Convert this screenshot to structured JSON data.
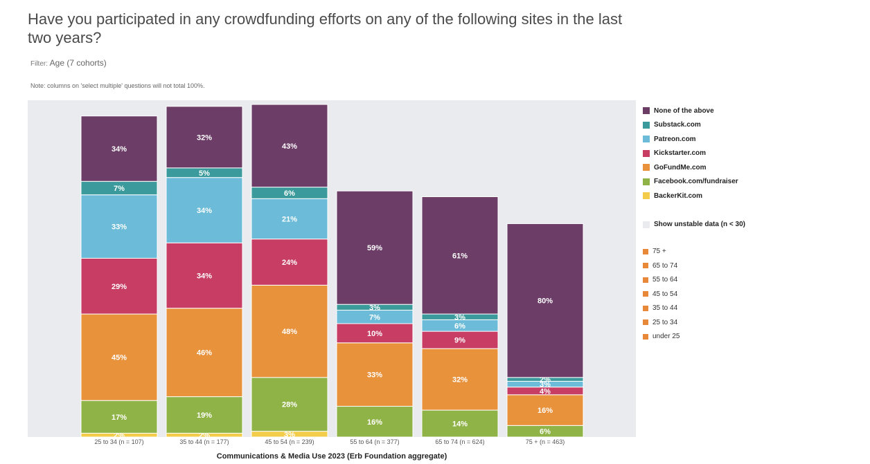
{
  "header": {
    "title": "Have you participated in any crowdfunding efforts on any of the following sites in the last two years?",
    "filter_label": "Filter:",
    "filter_value": "Age (7 cohorts)",
    "note": "Note: columns on 'select multiple' questions will not total 100%."
  },
  "colors": {
    "plot_bg": "#e9ebee",
    "None of the above": "#6b3d67",
    "Substack.com": "#3a9a9c",
    "Patreon.com": "#6cbbd8",
    "Kickstarter.com": "#c73d64",
    "GoFundMe.com": "#e8923c",
    "Facebook.com/fundraiser": "#8fb347",
    "BackerKit.com": "#f2cc4a"
  },
  "chart_data": {
    "type": "bar",
    "stacked": true,
    "xlabel": "Communications & Media Use 2023 (Erb Foundation aggregate)",
    "categories": [
      "25 to 34 (n = 107)",
      "35 to 44 (n = 177)",
      "45 to 54 (n = 239)",
      "55 to 64 (n = 377)",
      "65 to 74 (n = 624)",
      "75 + (n = 463)"
    ],
    "series": [
      {
        "name": "BackerKit.com",
        "values": [
          2,
          2,
          3,
          0,
          0,
          0
        ],
        "labels": [
          "2%",
          "2%",
          "3%",
          "",
          "",
          ""
        ]
      },
      {
        "name": "Facebook.com/fundraiser",
        "values": [
          17,
          19,
          28,
          16,
          14,
          6
        ],
        "labels": [
          "17%",
          "19%",
          "28%",
          "16%",
          "14%",
          "6%"
        ]
      },
      {
        "name": "GoFundMe.com",
        "values": [
          45,
          46,
          48,
          33,
          32,
          16
        ],
        "labels": [
          "45%",
          "46%",
          "48%",
          "33%",
          "32%",
          "16%"
        ]
      },
      {
        "name": "Kickstarter.com",
        "values": [
          29,
          34,
          24,
          10,
          9,
          4
        ],
        "labels": [
          "29%",
          "34%",
          "24%",
          "10%",
          "9%",
          "4%"
        ]
      },
      {
        "name": "Patreon.com",
        "values": [
          33,
          34,
          21,
          7,
          6,
          3
        ],
        "labels": [
          "33%",
          "34%",
          "21%",
          "7%",
          "6%",
          "3%"
        ]
      },
      {
        "name": "Substack.com",
        "values": [
          7,
          5,
          6,
          3,
          3,
          2
        ],
        "labels": [
          "7%",
          "5%",
          "6%",
          "3%",
          "3%",
          "2%"
        ]
      },
      {
        "name": "None of the above",
        "values": [
          34,
          32,
          43,
          59,
          61,
          80
        ],
        "labels": [
          "34%",
          "32%",
          "43%",
          "59%",
          "61%",
          "80%"
        ]
      }
    ],
    "legend_position": "right",
    "grid": false
  },
  "legend": {
    "items": [
      "None of the above",
      "Substack.com",
      "Patreon.com",
      "Kickstarter.com",
      "GoFundMe.com",
      "Facebook.com/fundraiser",
      "BackerKit.com"
    ],
    "unstable_toggle": "Show unstable data (n < 30)",
    "cohorts": [
      "75 +",
      "65 to 74",
      "55 to 64",
      "45 to 54",
      "35 to 44",
      "25 to 34",
      "under 25"
    ]
  }
}
